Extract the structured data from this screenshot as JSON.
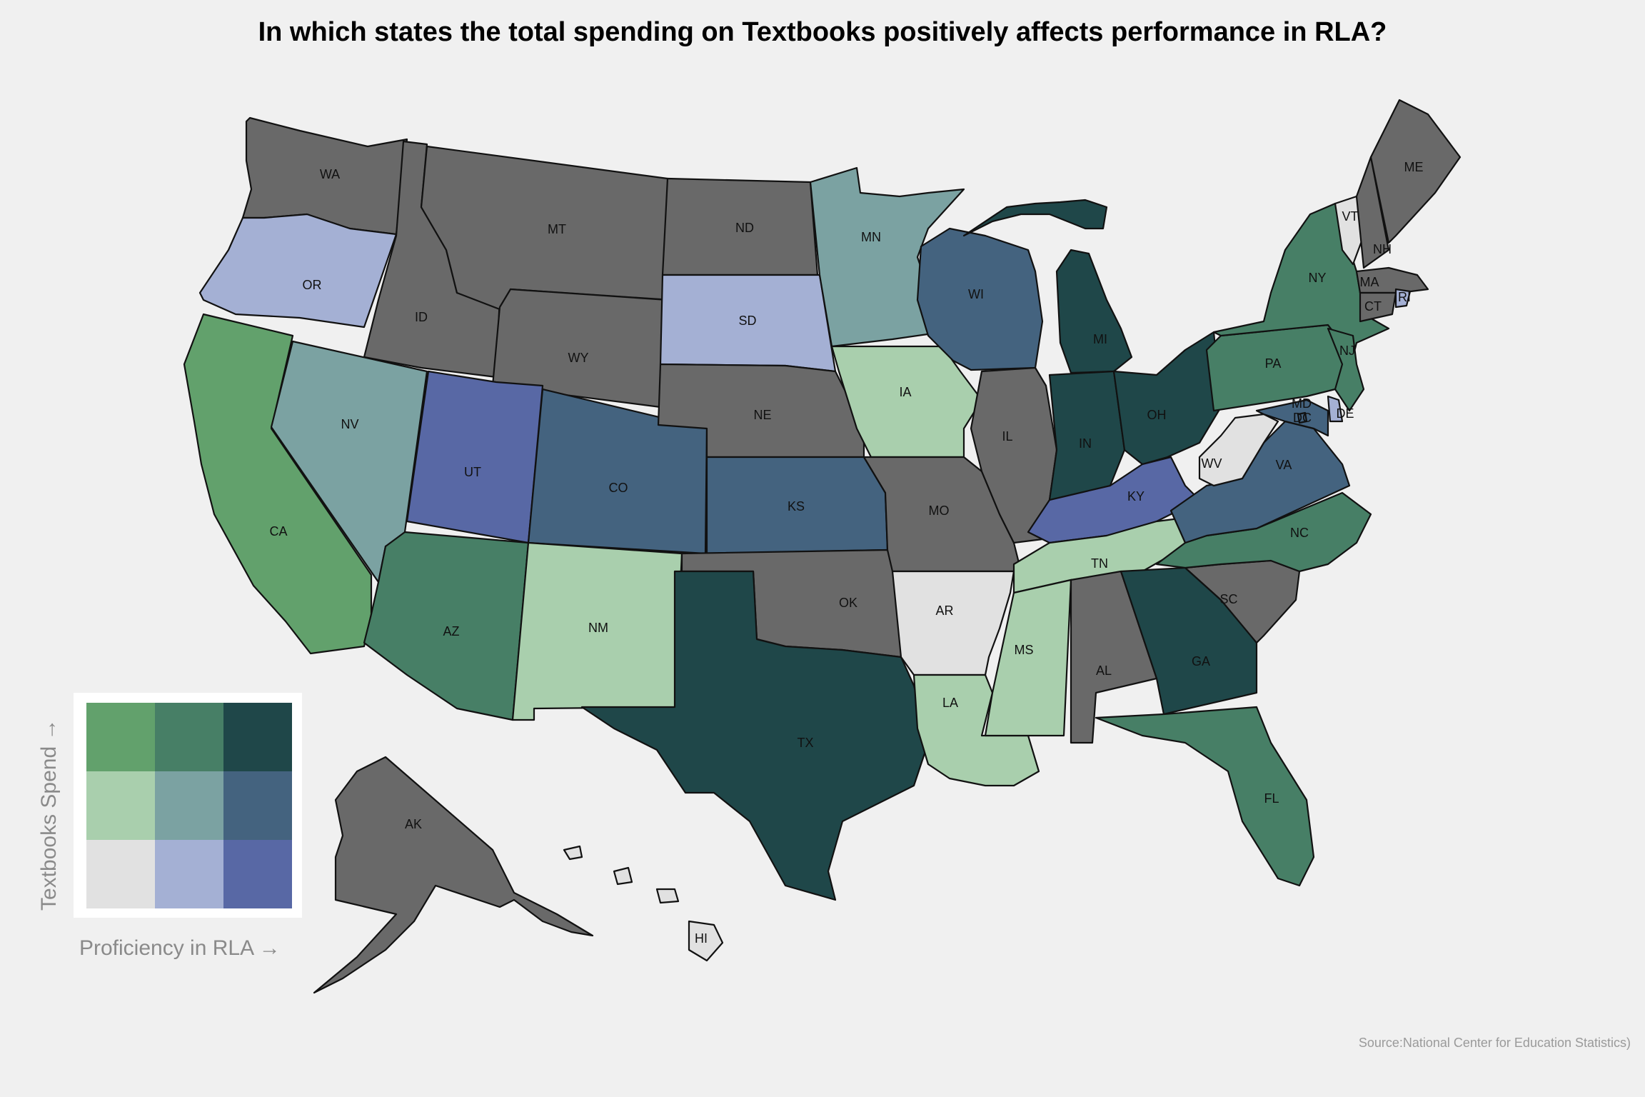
{
  "title": "In which states the total spending on Textbooks positively affects performance in RLA?",
  "source": "Source:National Center for Education Statistics)",
  "legend": {
    "y_label": "Textbooks Spend →",
    "x_label": "Proficiency in RLA →",
    "palette": {
      "S3P1": "#62a16c",
      "S3P2": "#477f66",
      "S3P3": "#1f4749",
      "S2P1": "#a9cfad",
      "S2P2": "#7ba2a2",
      "S2P3": "#44637f",
      "S1P1": "#e1e1e1",
      "S1P2": "#a4b0d4",
      "S1P3": "#5868a5",
      "none": "#696969"
    },
    "grid": [
      [
        "S3P1",
        "S3P2",
        "S3P3"
      ],
      [
        "S2P1",
        "S2P2",
        "S2P3"
      ],
      [
        "S1P1",
        "S1P2",
        "S1P3"
      ]
    ]
  },
  "chart_data": {
    "type": "choropleth",
    "states": [
      {
        "abbr": "WA",
        "cat": "none"
      },
      {
        "abbr": "OR",
        "cat": "S1P2"
      },
      {
        "abbr": "CA",
        "cat": "S3P1"
      },
      {
        "abbr": "ID",
        "cat": "none"
      },
      {
        "abbr": "NV",
        "cat": "S2P2"
      },
      {
        "abbr": "MT",
        "cat": "none"
      },
      {
        "abbr": "WY",
        "cat": "none"
      },
      {
        "abbr": "UT",
        "cat": "S1P3"
      },
      {
        "abbr": "AZ",
        "cat": "S3P2"
      },
      {
        "abbr": "CO",
        "cat": "S2P3"
      },
      {
        "abbr": "NM",
        "cat": "S2P1"
      },
      {
        "abbr": "ND",
        "cat": "none"
      },
      {
        "abbr": "SD",
        "cat": "S1P2"
      },
      {
        "abbr": "NE",
        "cat": "none"
      },
      {
        "abbr": "KS",
        "cat": "S2P3"
      },
      {
        "abbr": "OK",
        "cat": "none"
      },
      {
        "abbr": "TX",
        "cat": "S3P3"
      },
      {
        "abbr": "MN",
        "cat": "S2P2"
      },
      {
        "abbr": "IA",
        "cat": "S2P1"
      },
      {
        "abbr": "MO",
        "cat": "none"
      },
      {
        "abbr": "AR",
        "cat": "S1P1"
      },
      {
        "abbr": "LA",
        "cat": "S2P1"
      },
      {
        "abbr": "WI",
        "cat": "S2P3"
      },
      {
        "abbr": "IL",
        "cat": "none"
      },
      {
        "abbr": "MI",
        "cat": "S3P3"
      },
      {
        "abbr": "IN",
        "cat": "S3P3"
      },
      {
        "abbr": "OH",
        "cat": "S3P3"
      },
      {
        "abbr": "KY",
        "cat": "S1P3"
      },
      {
        "abbr": "TN",
        "cat": "S2P1"
      },
      {
        "abbr": "MS",
        "cat": "S2P1"
      },
      {
        "abbr": "AL",
        "cat": "none"
      },
      {
        "abbr": "GA",
        "cat": "S3P3"
      },
      {
        "abbr": "FL",
        "cat": "S3P2"
      },
      {
        "abbr": "SC",
        "cat": "none"
      },
      {
        "abbr": "NC",
        "cat": "S3P2"
      },
      {
        "abbr": "VA",
        "cat": "S2P3"
      },
      {
        "abbr": "WV",
        "cat": "S1P1"
      },
      {
        "abbr": "PA",
        "cat": "S3P2"
      },
      {
        "abbr": "NY",
        "cat": "S3P2"
      },
      {
        "abbr": "NJ",
        "cat": "S3P2"
      },
      {
        "abbr": "MD",
        "cat": "S2P3"
      },
      {
        "abbr": "DC",
        "cat": "S2P3"
      },
      {
        "abbr": "DE",
        "cat": "S1P2"
      },
      {
        "abbr": "VT",
        "cat": "S1P1"
      },
      {
        "abbr": "NH",
        "cat": "none"
      },
      {
        "abbr": "ME",
        "cat": "none"
      },
      {
        "abbr": "MA",
        "cat": "none"
      },
      {
        "abbr": "CT",
        "cat": "none"
      },
      {
        "abbr": "RI",
        "cat": "S1P2"
      },
      {
        "abbr": "AK",
        "cat": "none"
      },
      {
        "abbr": "HI",
        "cat": "S1P1"
      }
    ]
  }
}
